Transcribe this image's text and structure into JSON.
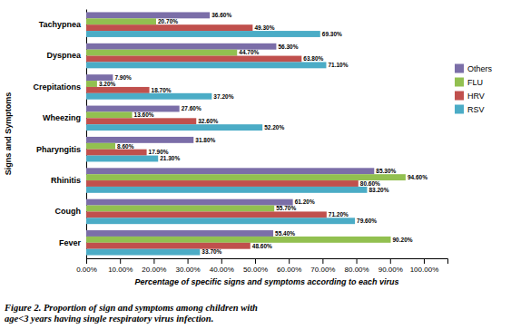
{
  "chart_data": {
    "type": "bar",
    "orientation": "horizontal",
    "categories": [
      "Fever",
      "Cough",
      "Rhinitis",
      "Pharyngitis",
      "Wheezing",
      "Crepitations",
      "Dyspnea",
      "Tachypnea"
    ],
    "series": [
      {
        "name": "Others",
        "color": "#7B6EA8",
        "values": [
          55.4,
          61.2,
          85.3,
          31.8,
          27.6,
          7.9,
          56.3,
          36.6
        ],
        "value_labels": [
          "55.40%",
          "61.20%",
          "85.30%",
          "31.80%",
          "27.60%",
          "7.90%",
          "56.30%",
          "36.60%"
        ]
      },
      {
        "name": "FLU",
        "color": "#92C050",
        "values": [
          90.2,
          55.7,
          94.6,
          8.6,
          13.6,
          3.2,
          44.7,
          20.7
        ],
        "value_labels": [
          "90.20%",
          "55.70%",
          "94.60%",
          "8.60%",
          "13.60%",
          "3.20%",
          "44.70%",
          "20.70%"
        ]
      },
      {
        "name": "HRV",
        "color": "#C0504D",
        "values": [
          48.6,
          71.2,
          80.6,
          17.9,
          32.6,
          18.7,
          63.8,
          49.3
        ],
        "value_labels": [
          "48.60%",
          "71.20%",
          "80.60%",
          "17.90%",
          "32.60%",
          "18.70%",
          "63.80%",
          "49.30%"
        ]
      },
      {
        "name": "RSV",
        "color": "#4BACC6",
        "values": [
          33.7,
          79.6,
          83.2,
          21.3,
          52.2,
          37.2,
          71.1,
          69.3
        ],
        "value_labels": [
          "33.70%",
          "79.60%",
          "83.20%",
          "21.30%",
          "52.20%",
          "37.20%",
          "71.10%",
          "69.30%"
        ]
      }
    ],
    "x_label": "Percentage of specific signs and symptoms  according to each virus",
    "y_label": "Signs and Symptoms",
    "annotations": [
      "Figure  2.  Proportion of sign and symptoms among children with\nage<3 years having single respiratory virus infection."
    ],
    "xlim": [
      0,
      107
    ],
    "xticks": [
      {
        "value": 0,
        "label": "0.00%"
      },
      {
        "value": 10,
        "label": "10.00%"
      },
      {
        "value": 20,
        "label": "20.00%"
      },
      {
        "value": 30,
        "label": "30.00%"
      },
      {
        "value": 40,
        "label": "40.00%"
      },
      {
        "value": 50,
        "label": "50.00%"
      },
      {
        "value": 60,
        "label": "60.00%"
      },
      {
        "value": 70,
        "label": "70.00%"
      },
      {
        "value": 80,
        "label": "80.00%"
      },
      {
        "value": 90,
        "label": "90.00%"
      },
      {
        "value": 100,
        "label": "100.00%"
      }
    ],
    "data_labels": true,
    "legend": "right",
    "grid": false
  }
}
